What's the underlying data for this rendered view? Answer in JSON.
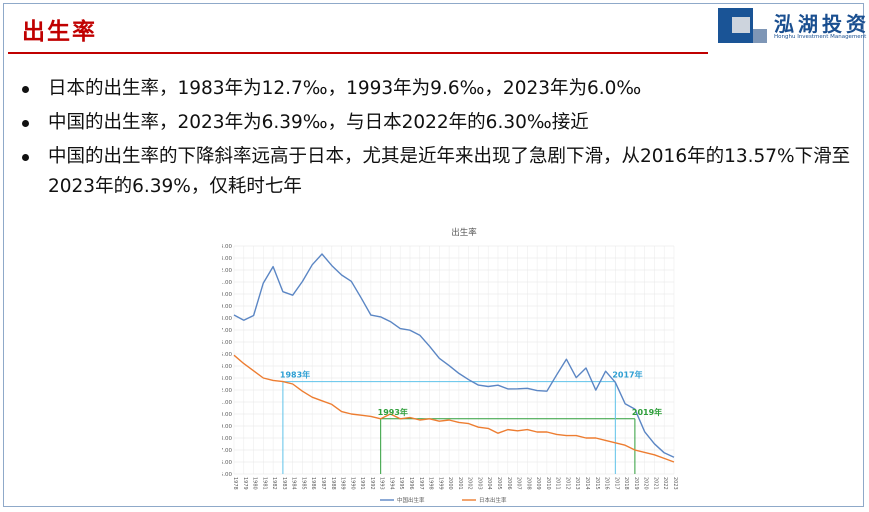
{
  "slide": {
    "title": "出生率"
  },
  "brand": {
    "name": "泓湖投资",
    "subtitle": "Honghu Investment Management"
  },
  "bullets": [
    "日本的出生率，1983年为12.7‰，1993年为9.6‰，2023年为6.0‰",
    "中国的出生率，2023年为6.39‰，与日本2022年的6.30‰接近",
    "中国的出生率的下降斜率远高于日本，尤其是近年来出现了急剧下滑，从2016年的13.57%下滑至2023年的6.39%，仅耗时七年"
  ],
  "chart_data": {
    "type": "line",
    "title": "出生率",
    "xlabel": "",
    "ylabel": "",
    "categories": [
      "1978",
      "1979",
      "1980",
      "1981",
      "1982",
      "1983",
      "1984",
      "1985",
      "1986",
      "1987",
      "1988",
      "1989",
      "1990",
      "1991",
      "1992",
      "1993",
      "1994",
      "1995",
      "1996",
      "1997",
      "1998",
      "1999",
      "2000",
      "2001",
      "2002",
      "2003",
      "2004",
      "2005",
      "2006",
      "2007",
      "2008",
      "2009",
      "2010",
      "2011",
      "2012",
      "2013",
      "2014",
      "2015",
      "2016",
      "2017",
      "2018",
      "2019",
      "2020",
      "2021",
      "2022",
      "2023"
    ],
    "ylim": [
      5,
      24
    ],
    "yticks": [
      "5.00",
      "6.00",
      "7.00",
      "8.00",
      "9.00",
      "10.00",
      "11.00",
      "12.00",
      "13.00",
      "14.00",
      "15.00",
      "16.00",
      "17.00",
      "18.00",
      "19.00",
      "20.00",
      "21.00",
      "22.00",
      "23.00",
      "24.00"
    ],
    "series": [
      {
        "name": "中国出生率",
        "color": "#5b86c4",
        "values": [
          18.25,
          17.82,
          18.21,
          20.91,
          22.28,
          20.19,
          19.9,
          21.04,
          22.43,
          23.33,
          22.37,
          21.58,
          21.06,
          19.68,
          18.24,
          18.09,
          17.7,
          17.12,
          16.98,
          16.57,
          15.64,
          14.64,
          14.03,
          13.38,
          12.86,
          12.41,
          12.29,
          12.4,
          12.09,
          12.1,
          12.14,
          11.95,
          11.9,
          13.27,
          14.57,
          13.03,
          13.83,
          11.99,
          13.57,
          12.64,
          10.86,
          10.41,
          8.52,
          7.52,
          6.77,
          6.39
        ]
      },
      {
        "name": "日本出生率",
        "color": "#ed7d31",
        "values": [
          14.9,
          14.2,
          13.6,
          13.0,
          12.8,
          12.7,
          12.5,
          11.9,
          11.4,
          11.1,
          10.8,
          10.2,
          10.0,
          9.9,
          9.8,
          9.6,
          10.0,
          9.6,
          9.7,
          9.5,
          9.6,
          9.4,
          9.5,
          9.3,
          9.2,
          8.9,
          8.8,
          8.4,
          8.7,
          8.6,
          8.7,
          8.5,
          8.5,
          8.3,
          8.2,
          8.2,
          8.0,
          8.0,
          7.8,
          7.6,
          7.4,
          7.0,
          6.8,
          6.6,
          6.3,
          6.0
        ]
      }
    ],
    "annotations": [
      {
        "label": "1983年",
        "year": "1983",
        "value": 12.7,
        "line_color": "#5fc3ea",
        "text_color": "#2e9fd3",
        "to_year": "2017"
      },
      {
        "label": "1993年",
        "year": "1993",
        "value": 9.6,
        "line_color": "#2e9e3a",
        "text_color": "#2e9e3a",
        "to_year": "2019"
      },
      {
        "label": "2017年",
        "year": "2017",
        "value": 12.7,
        "line_color": "#5fc3ea",
        "text_color": "#2e9fd3"
      },
      {
        "label": "2019年",
        "year": "2019",
        "value": 9.6,
        "line_color": "#2e9e3a",
        "text_color": "#2e9e3a"
      }
    ],
    "grid": true,
    "legend_position": "bottom"
  }
}
